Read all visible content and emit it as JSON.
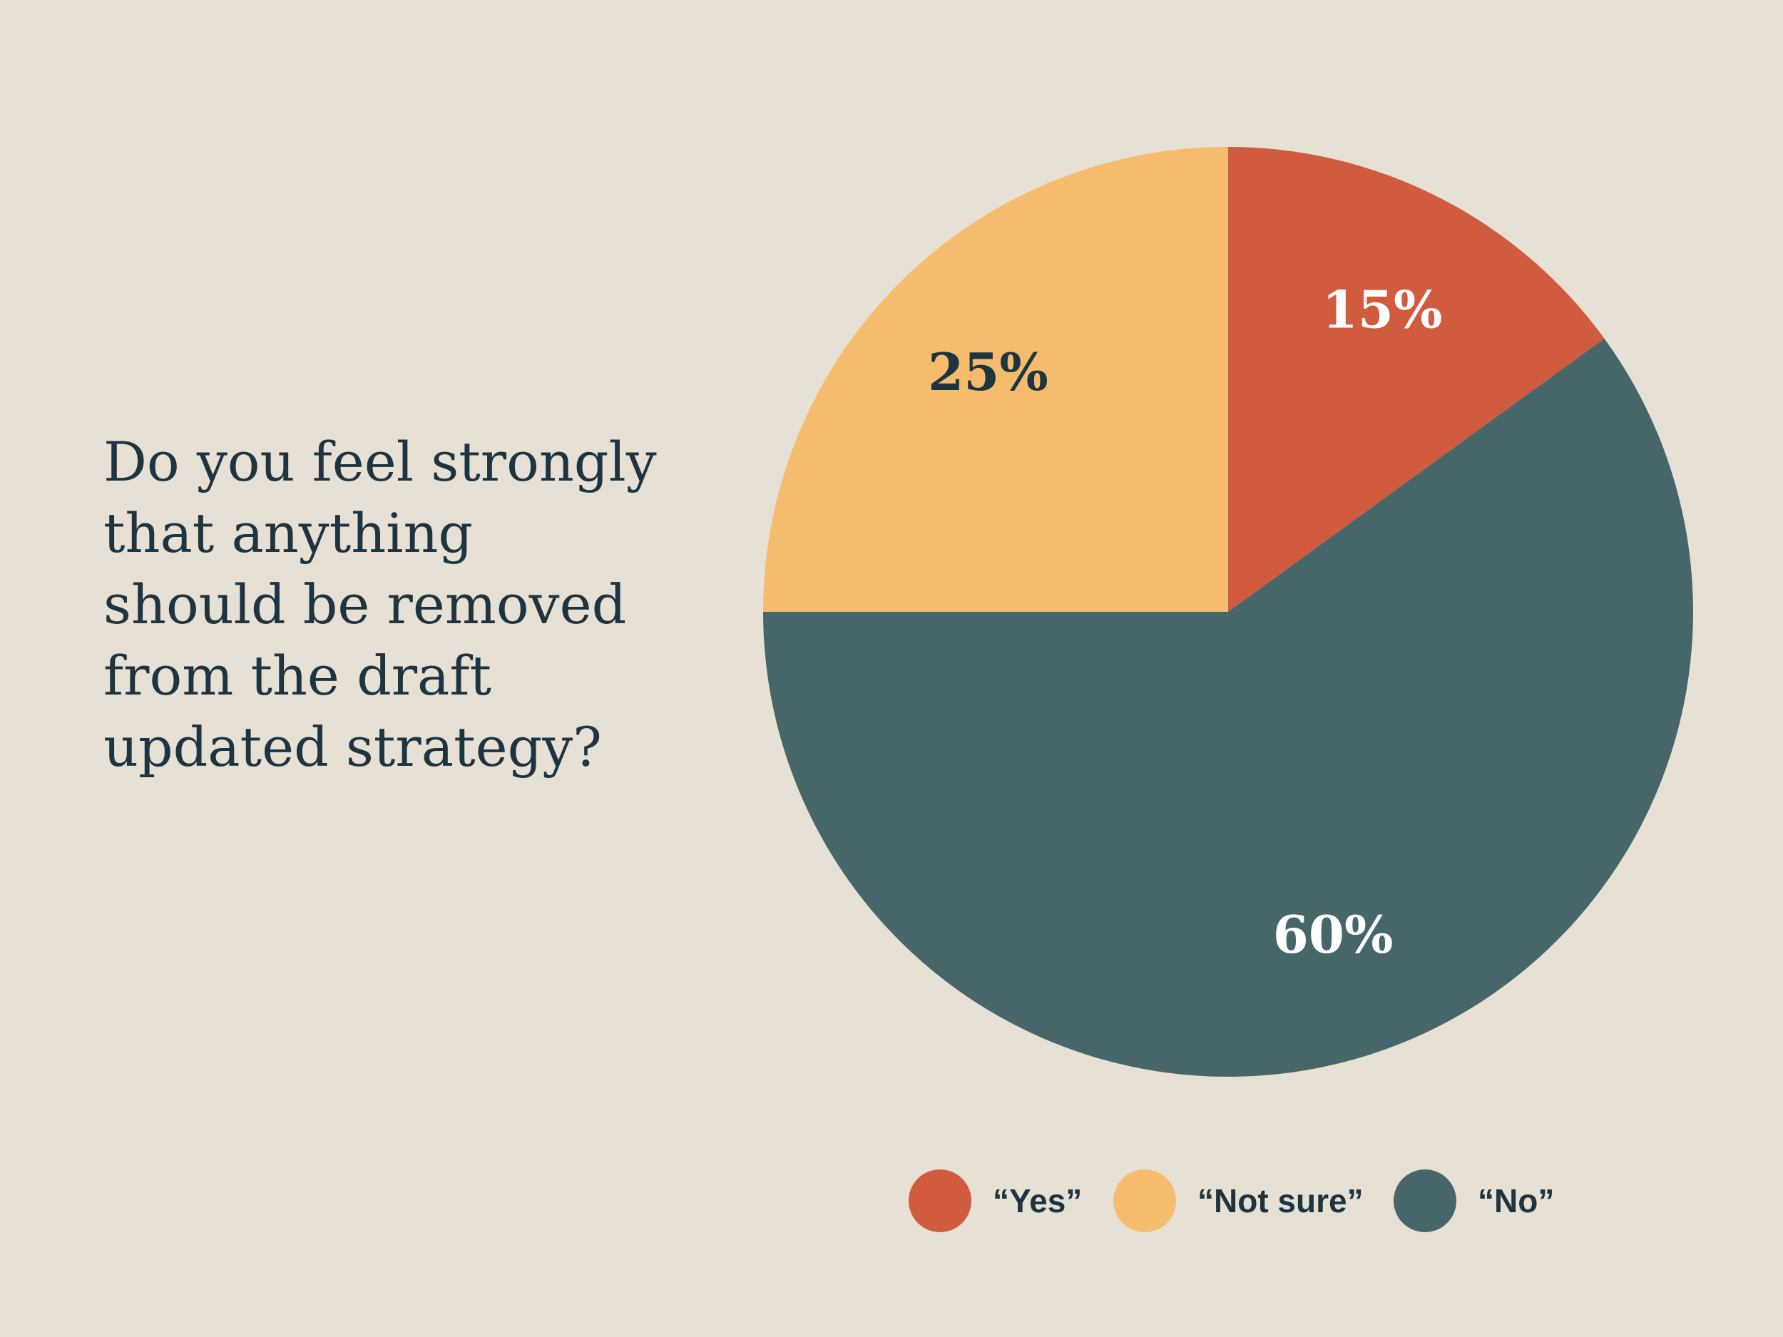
{
  "chart_data": {
    "type": "pie",
    "title": "Do you feel strongly that anything should be removed from the draft updated strategy?",
    "title_lines": [
      "Do you feel strongly",
      "that anything",
      "should be removed",
      "from the draft",
      "updated strategy?"
    ],
    "unit": "%",
    "start_angle_deg": -36,
    "direction": "counterclockwise",
    "legend_position": "bottom",
    "slices": [
      {
        "label": "“Yes”",
        "value": 15,
        "display": "15%",
        "color": "#d15b3e",
        "text_color": "#ffffff"
      },
      {
        "label": "“Not sure”",
        "value": 25,
        "display": "25%",
        "color": "#f4bc6c",
        "text_color": "#1e3440"
      },
      {
        "label": "“No”",
        "value": 60,
        "display": "60%",
        "color": "#466669",
        "text_color": "#ffffff"
      }
    ]
  }
}
